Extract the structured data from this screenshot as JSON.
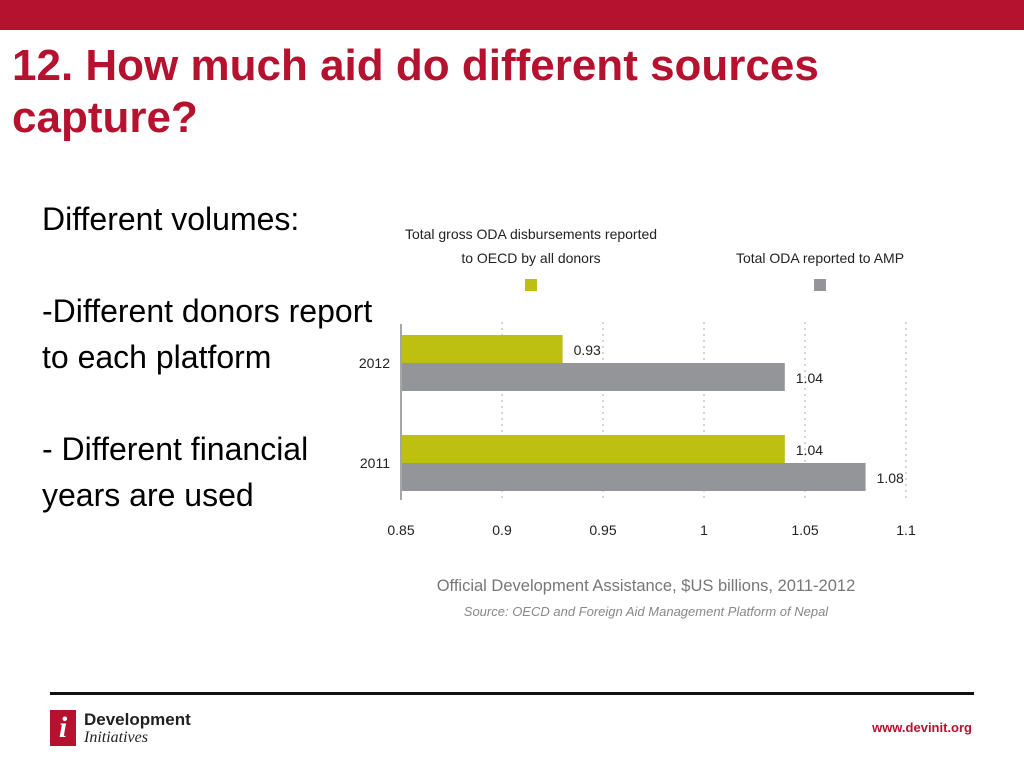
{
  "slide": {
    "title": "12. How much aid do different sources capture?",
    "body": [
      "Different volumes:",
      "-Different donors report to each platform",
      "- Different financial years are used"
    ]
  },
  "footer": {
    "logo_line1": "Development",
    "logo_line2": "Initiatives",
    "logo_mark": "i",
    "url": "www.devinit.org"
  },
  "colors": {
    "brand": "#b5122f",
    "series_oecd": "#bdc011",
    "series_amp": "#939598"
  },
  "chart_data": {
    "type": "bar",
    "orientation": "horizontal",
    "categories": [
      "2012",
      "2011"
    ],
    "series": [
      {
        "name": "Total gross ODA disbursements reported to OECD by all donors",
        "name_lines": [
          "Total gross ODA disbursements reported",
          "to OECD by all donors"
        ],
        "color": "#bdc011",
        "values": [
          0.93,
          1.04
        ],
        "labels": [
          "0.93",
          "1.04"
        ]
      },
      {
        "name": "Total ODA reported to AMP",
        "name_lines": [
          "Total ODA reported to AMP"
        ],
        "color": "#939598",
        "values": [
          1.04,
          1.08
        ],
        "labels": [
          "1.04",
          "1.08"
        ]
      }
    ],
    "xlim": [
      0.85,
      1.1
    ],
    "xticks": [
      0.85,
      0.9,
      0.95,
      1,
      1.05,
      1.1
    ],
    "xtick_labels": [
      "0.85",
      "0.9",
      "0.95",
      "1",
      "1.05",
      "1.1"
    ],
    "xlabel": "Official Development Assistance, $US billions, 2011-2012",
    "source": "Source: OECD and Foreign Aid Management Platform of Nepal",
    "grid": true,
    "legend": "top"
  }
}
